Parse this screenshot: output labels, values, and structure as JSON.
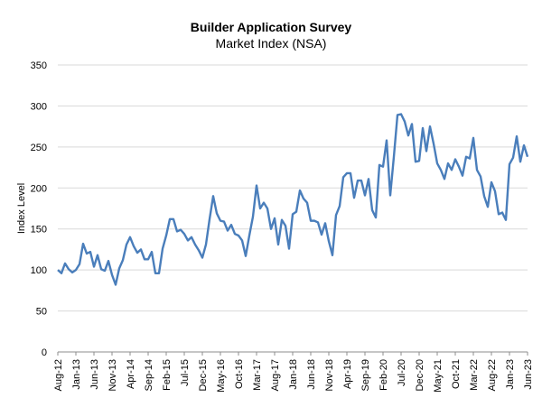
{
  "chart_data": {
    "type": "line",
    "title": "Builder Application Survey",
    "subtitle": "Market Index (NSA)",
    "xlabel": "",
    "ylabel": "Index Level",
    "ylim": [
      0,
      350
    ],
    "yticks": [
      0,
      50,
      100,
      150,
      200,
      250,
      300,
      350
    ],
    "grid": "horizontal",
    "legend": "none",
    "line_color": "#4a7ebb",
    "x_start": "Aug-12",
    "x_tick_labels": [
      "Aug-12",
      "Jan-13",
      "Jun-13",
      "Nov-13",
      "Apr-14",
      "Sep-14",
      "Feb-15",
      "Jul-15",
      "Dec-15",
      "May-16",
      "Oct-16",
      "Mar-17",
      "Aug-17",
      "Jan-18",
      "Jun-18",
      "Nov-18",
      "Apr-19",
      "Sep-19",
      "Feb-20",
      "Jul-20",
      "Dec-20",
      "May-21",
      "Oct-21",
      "Mar-22",
      "Aug-22",
      "Jan-23",
      "Jun-23"
    ],
    "series": [
      {
        "values": [
          100,
          96,
          108,
          101,
          97,
          100,
          107,
          132,
          120,
          122,
          104,
          118,
          101,
          99,
          111,
          94,
          82,
          102,
          112,
          131,
          140,
          129,
          121,
          125,
          113,
          113,
          122,
          96,
          96,
          126,
          142,
          162,
          162,
          147,
          149,
          144,
          136,
          140,
          131,
          124,
          115,
          131,
          162,
          190,
          169,
          160,
          159,
          148,
          155,
          144,
          142,
          136,
          117,
          142,
          165,
          203,
          175,
          182,
          175,
          150,
          163,
          131,
          161,
          154,
          126,
          168,
          171,
          197,
          187,
          182,
          160,
          160,
          158,
          143,
          157,
          135,
          118,
          167,
          178,
          213,
          218,
          218,
          188,
          209,
          209,
          191,
          211,
          173,
          164,
          228,
          226,
          258,
          191,
          238,
          289,
          290,
          281,
          264,
          278,
          232,
          233,
          273,
          245,
          275,
          254,
          230,
          222,
          211,
          230,
          222,
          235,
          226,
          215,
          238,
          236,
          261,
          222,
          214,
          190,
          177,
          207,
          196,
          168,
          170,
          161,
          229,
          237,
          263,
          232,
          252,
          238
        ]
      }
    ]
  }
}
